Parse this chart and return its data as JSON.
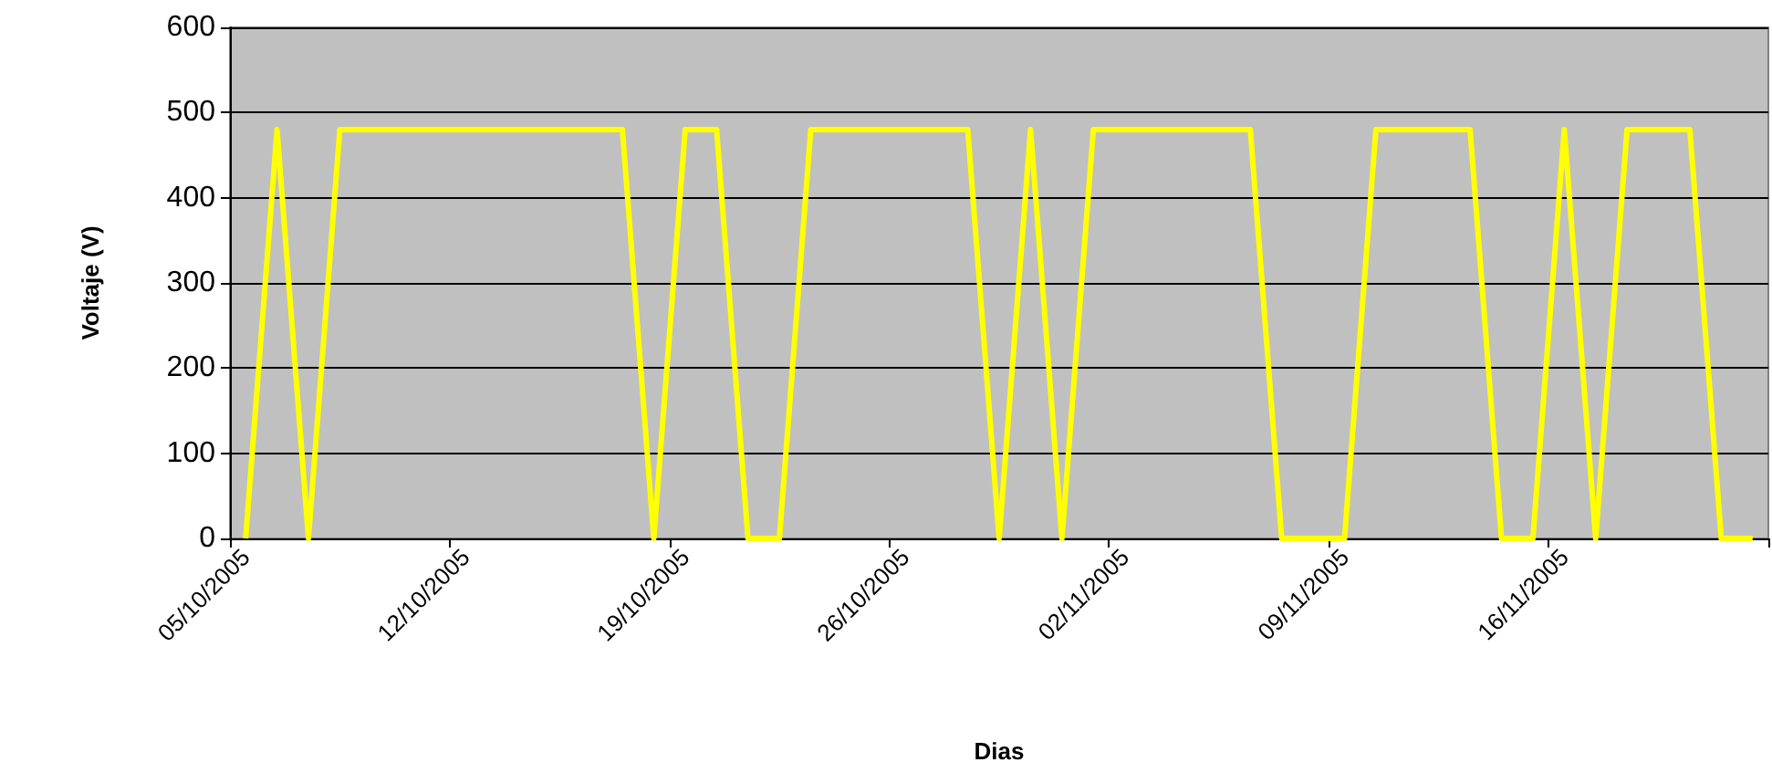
{
  "chart_data": {
    "type": "line",
    "xlabel": "Dias",
    "ylabel": "Voltaje (V)",
    "categories": [
      "05/10/2005",
      null,
      null,
      null,
      null,
      null,
      null,
      "12/10/2005",
      null,
      null,
      null,
      null,
      null,
      null,
      "19/10/2005",
      null,
      null,
      null,
      null,
      null,
      null,
      "26/10/2005",
      null,
      null,
      null,
      null,
      null,
      null,
      "02/11/2005",
      null,
      null,
      null,
      null,
      null,
      null,
      "09/11/2005",
      null,
      null,
      null,
      null,
      null,
      null,
      "16/11/2005",
      null,
      null,
      null,
      null,
      null,
      null
    ],
    "series": [
      {
        "color": "#ffff00",
        "values": [
          0,
          480,
          0,
          480,
          480,
          480,
          480,
          480,
          480,
          480,
          480,
          480,
          480,
          0,
          480,
          480,
          0,
          0,
          480,
          480,
          480,
          480,
          480,
          480,
          0,
          480,
          0,
          480,
          480,
          480,
          480,
          480,
          480,
          0,
          0,
          0,
          480,
          480,
          480,
          480,
          0,
          0,
          480,
          0,
          480,
          480,
          480,
          0,
          0
        ]
      }
    ],
    "ylim": [
      0,
      600
    ],
    "yticks": [
      0,
      100,
      200,
      300,
      400,
      500,
      600
    ],
    "grid": "y",
    "marker": "none",
    "line_style": "solid"
  }
}
